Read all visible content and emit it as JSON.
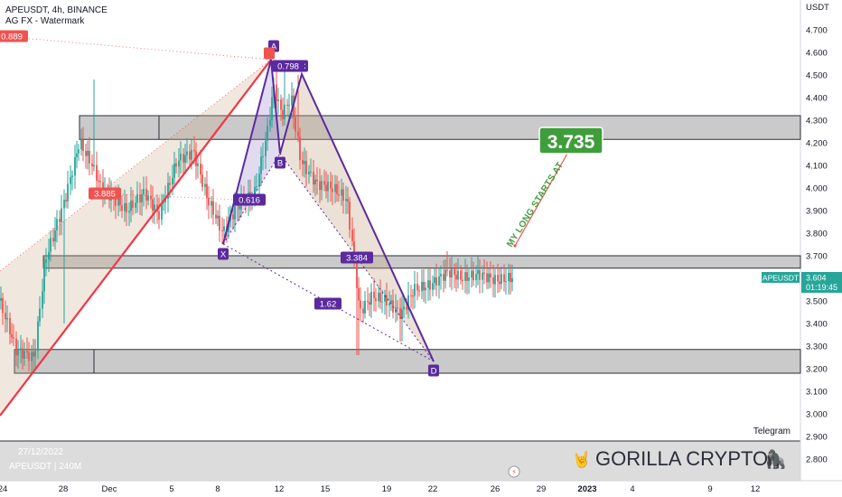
{
  "header": {
    "symbol_line": "APEUSDT, 4h, BINANCE",
    "indicator_line": "AG FX - Watermark"
  },
  "price_axis": {
    "currency": "USDT",
    "ticks": [
      "4.700",
      "4.600",
      "4.500",
      "4.400",
      "4.300",
      "4.200",
      "4.100",
      "4.000",
      "3.900",
      "3.800",
      "3.700",
      "3.600",
      "3.500",
      "3.400",
      "3.300",
      "3.200",
      "3.100",
      "3.000",
      "2.900",
      "2.800"
    ],
    "last_price_symbol": "APEUSDT",
    "last_price": "3.604",
    "countdown": "01:19:45"
  },
  "time_axis": {
    "ticks": [
      "24",
      "28",
      "Dec",
      "5",
      "8",
      "12",
      "15",
      "19",
      "22",
      "26",
      "29",
      "2023",
      "4",
      "9",
      "12"
    ]
  },
  "pattern": {
    "point_labels": [
      "A",
      "C",
      "B",
      "X",
      "D"
    ],
    "ratio_labels": [
      "0.798",
      "0.616",
      "3.384",
      "1.62"
    ],
    "price_badges": [
      "0.889",
      "3.885"
    ]
  },
  "annotations": {
    "target_box": "3.735",
    "diagonal_note": "MY LONG STARTS AT"
  },
  "volume_pane": {
    "date": "27/12/2022",
    "volume": "APEUSDT | 240M"
  },
  "watermark": {
    "text": "GORILLA CRYPTO",
    "emoji": "🦍"
  },
  "telegram_label": "Telegram",
  "colors": {
    "bull": "#26a69a",
    "bear": "#ef5350",
    "pattern": "#5b2a9e",
    "trendline": "#f23645",
    "target_green": "#3f9e3b",
    "zone_fill": "#9e9e9e"
  },
  "chart_data": {
    "type": "candlestick",
    "title": "",
    "ylabel": "USDT",
    "ylim": [
      2.72,
      4.78
    ],
    "zones": [
      {
        "from": 4.215,
        "to": 4.32
      },
      {
        "from": 3.645,
        "to": 3.7
      },
      {
        "from": 3.18,
        "to": 3.285
      }
    ],
    "harmonic_points": [
      {
        "label": "X",
        "x": "Dec 8",
        "y": 3.76
      },
      {
        "label": "A",
        "x": "Dec 11",
        "y": 4.6
      },
      {
        "label": "B",
        "x": "Dec 11",
        "y": 4.15
      },
      {
        "label": "C",
        "x": "Dec 13",
        "y": 4.5
      },
      {
        "label": "D",
        "x": "Dec 22",
        "y": 3.24
      }
    ],
    "target": 3.735,
    "last_price": 3.604
  }
}
